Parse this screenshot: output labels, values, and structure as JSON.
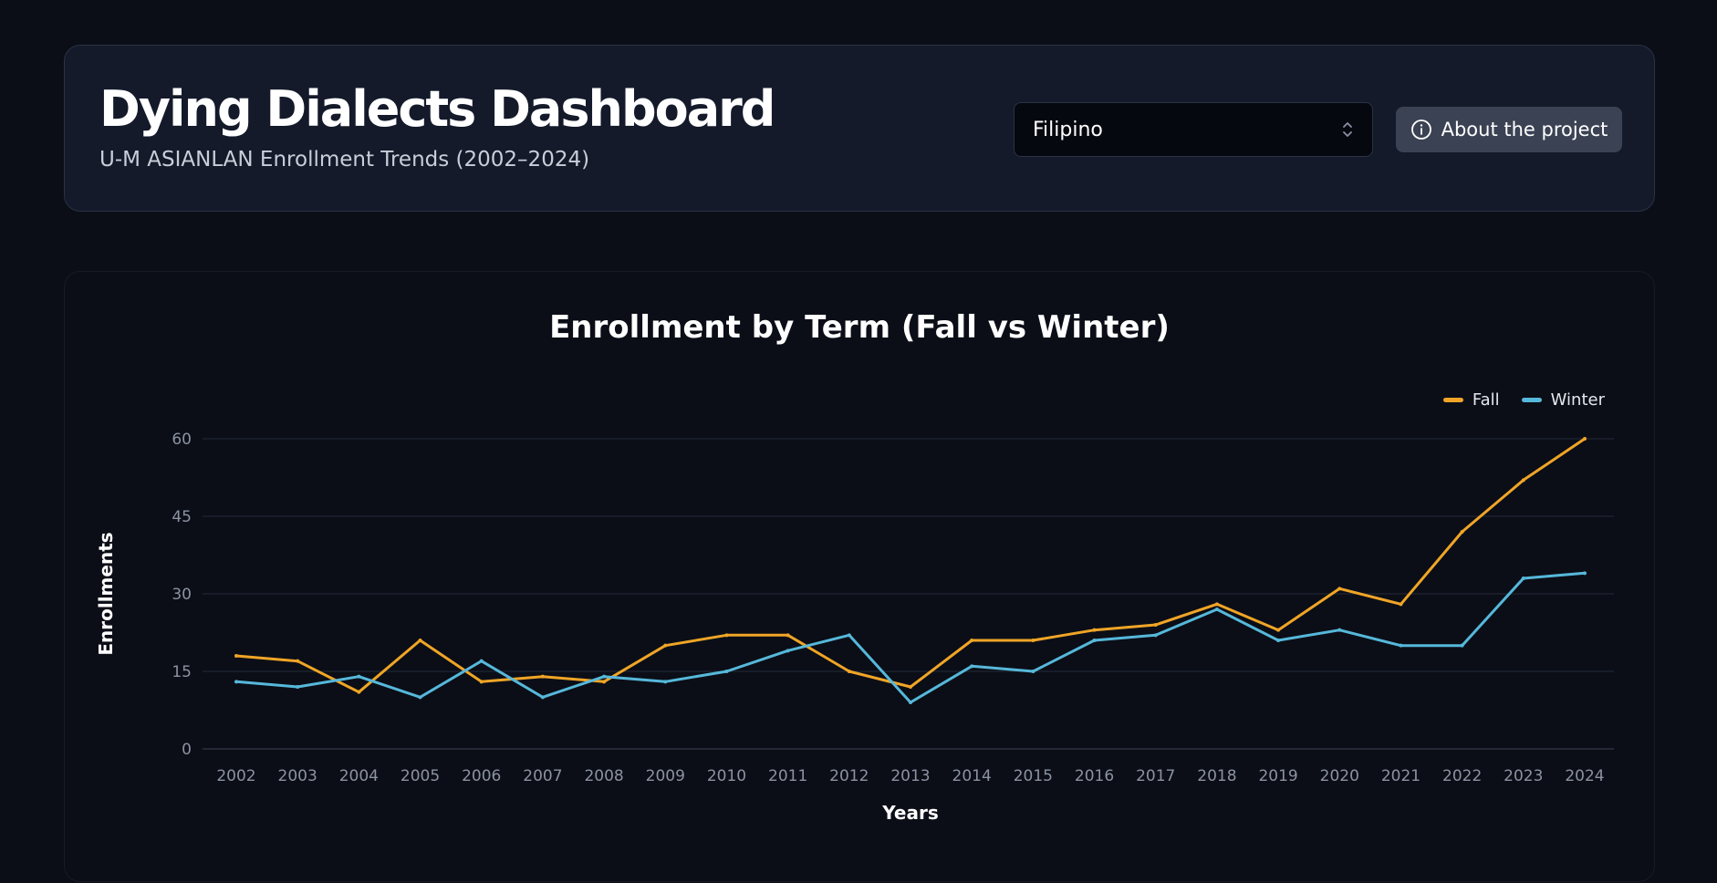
{
  "header": {
    "title": "Dying Dialects Dashboard",
    "subtitle": "U-M ASIANLAN Enrollment Trends (2002–2024)",
    "language_select": {
      "value": "Filipino"
    },
    "about_button": {
      "label": "About the project",
      "icon": "info-icon"
    }
  },
  "chart_data": {
    "type": "line",
    "title": "Enrollment by Term (Fall vs Winter)",
    "xlabel": "Years",
    "ylabel": "Enrollments",
    "x": [
      "2002",
      "2003",
      "2004",
      "2005",
      "2006",
      "2007",
      "2008",
      "2009",
      "2010",
      "2011",
      "2012",
      "2013",
      "2014",
      "2015",
      "2016",
      "2017",
      "2018",
      "2019",
      "2020",
      "2021",
      "2022",
      "2023",
      "2024"
    ],
    "yticks": [
      "0",
      "15",
      "30",
      "45",
      "60"
    ],
    "ylim": [
      0,
      60
    ],
    "grid": true,
    "legend_position": "top-right",
    "series": [
      {
        "name": "Fall",
        "color": "#f0a526",
        "values": [
          18,
          17,
          11,
          21,
          13,
          14,
          13,
          20,
          22,
          22,
          15,
          12,
          21,
          21,
          23,
          24,
          28,
          23,
          31,
          28,
          42,
          52,
          60
        ]
      },
      {
        "name": "Winter",
        "color": "#56b8da",
        "values": [
          13,
          12,
          14,
          10,
          17,
          10,
          14,
          13,
          15,
          19,
          22,
          9,
          16,
          15,
          21,
          22,
          27,
          21,
          23,
          20,
          20,
          33,
          34
        ]
      }
    ]
  }
}
